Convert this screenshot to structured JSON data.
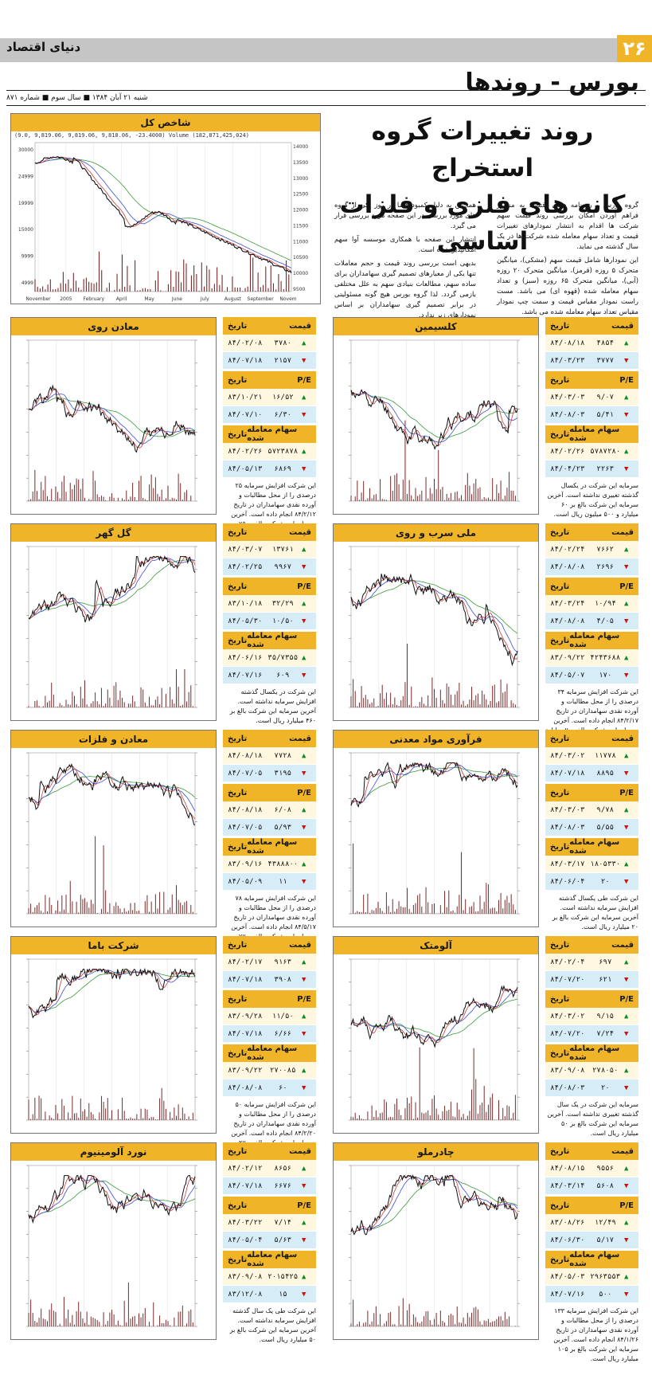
{
  "page": {
    "number": "۲۶",
    "publication": "دنیای اقتصاد",
    "section": "بورس - روندها",
    "dateline": "شنبه ۲۱ آبان ۱۳۸۴ ■ سال سوم ■ شماره ۸۷۱"
  },
  "headline": {
    "line1": "روند تغییرات گروه استخراج",
    "line2": "کانه های فلزی و فلزات اساسی"
  },
  "body": {
    "col_right_p1": "گروه بورس - روزنامه دنیای اقتصاد به منظور فراهم آوردن امکان بررسی روند قیمت سهم شرکت ها اقدام به انتشار نمودارهای تغییرات قیمت و تعداد سهام معامله شده شرکت ها در یک سال گذشته می نماید.",
    "col_right_p2": "این نمودارها شامل قیمت سهم (مشکی)، میانگین متحرک ۵ روزه (قرمز)، میانگین متحرک ۲۰ روزه (آبی)، میانگین متحرک ۶۵ روزه (سبز) و تعداد سهام معامله شده (قهوه ای) می باشد. مست راست نمودار مقیاس قیمت و سمت چپ نمودار مقیاس تعداد سهام معامله شده می باشد.",
    "col_left_p1": "همچنین به دلیل کمبود فضا در روز یکی از گروه های مورد بررسی در این صفحه مورد بررسی قرار می گیرد.",
    "col_left_p2": "انتشار این صفحه با همکاری موسسه آوا سهم امکانپذیر شده است.",
    "col_left_p3": "بدیهی است بررسی روند قیمت و حجم معاملات تنها یکی از معیارهای تصمیم گیری سهامداران برای ساده سهم، مطالعات بنیادی سهم به علل مختلفی بازمی گردد. لذا گروه بورس هیچ گونه مسئولیتی در برابر تصمیم گیری سهامداران بر اساس نمودارهای زیر ندارد."
  },
  "index_panel": {
    "title": "شاخص کل",
    "legend": "(9.0, 9,819.06, 9,819.06, 9,818.06, -23.4000)  Volume (182,871,425,024)",
    "left_ticks": [
      "30000",
      "24999",
      "19999",
      "15000",
      "9999",
      "4999"
    ],
    "right_ticks": [
      "14000",
      "13500",
      "13000",
      "12500",
      "12000",
      "11500",
      "11000",
      "10500",
      "10000",
      "9500"
    ],
    "x_ticks": [
      "November",
      "2005",
      "February",
      "April",
      "May",
      "June",
      "July",
      "August",
      "September",
      "Novem"
    ]
  },
  "labels": {
    "price": "قیمت",
    "date": "تاریخ",
    "pe": "P/E",
    "volume": "سهام معامله شده"
  },
  "companies": [
    {
      "title": "کلسیمین",
      "price": [
        {
          "v": "۴۸۵۴",
          "d": "۸۴/۰۸/۱۸",
          "dir": "up"
        },
        {
          "v": "۳۷۷۷",
          "d": "۸۴/۰۳/۲۳",
          "dir": "dn"
        }
      ],
      "pe": [
        {
          "v": "۹/۰۷",
          "d": "۸۴/۰۳/۰۳",
          "dir": "up"
        },
        {
          "v": "۵/۴۱",
          "d": "۸۴/۰۸/۰۳",
          "dir": "dn"
        }
      ],
      "vol": [
        {
          "v": "۵۷۸۷۲۸۰",
          "d": "۸۴/۰۲/۲۶",
          "dir": "up"
        },
        {
          "v": "۲۲۶۳",
          "d": "۸۴/۰۴/۲۳",
          "dir": "dn"
        }
      ],
      "note": "سرمایه این شرکت در یکسال گذشته تغییری نداشته است. آخرین سرمایه این شرکت بالغ بر ۶۰ میلیارد و ۵۰۰ میلیون ریال است."
    },
    {
      "title": "معادن روی",
      "price": [
        {
          "v": "۳۷۸۰",
          "d": "۸۴/۰۲/۰۸",
          "dir": "up"
        },
        {
          "v": "۲۱۵۷",
          "d": "۸۴/۰۷/۱۸",
          "dir": "dn"
        }
      ],
      "pe": [
        {
          "v": "۱۶/۵۲",
          "d": "۸۳/۱۰/۲۱",
          "dir": "up"
        },
        {
          "v": "۶/۳۰",
          "d": "۸۴/۰۷/۱۰",
          "dir": "dn"
        }
      ],
      "vol": [
        {
          "v": "۵۷۲۳۸۷۸",
          "d": "۸۴/۰۲/۲۶",
          "dir": "up"
        },
        {
          "v": "۶۸۶۹",
          "d": "۸۴/۰۵/۱۳",
          "dir": "dn"
        }
      ],
      "note": "این شرکت افزایش سرمایه ۲۵ درصدی را از محل مطالبات و آورده نقدی سهامداران در تاریخ ۸۴/۲/۱۲ انجام داده است. آخرین سرمایه این شرکت بالغ بر ۷۵ میلیارد و ۴۴ میلیون ریال است."
    },
    {
      "title": "ملی سرب و روی",
      "price": [
        {
          "v": "۷۶۶۲",
          "d": "۸۴/۰۲/۲۴",
          "dir": "up"
        },
        {
          "v": "۲۶۹۶",
          "d": "۸۴/۰۸/۰۸",
          "dir": "dn"
        }
      ],
      "pe": [
        {
          "v": "۱۰/۹۴",
          "d": "۸۴/۰۳/۲۴",
          "dir": "up"
        },
        {
          "v": "۴/۰۵",
          "d": "۸۴/۰۸/۰۸",
          "dir": "dn"
        }
      ],
      "vol": [
        {
          "v": "۴۲۴۳۶۸۸",
          "d": "۸۳/۰۹/۲۲",
          "dir": "up"
        },
        {
          "v": "۱۷۰",
          "d": "۸۴/۰۵/۰۷",
          "dir": "dn"
        }
      ],
      "note": "این شرکت افزایش سرمایه ۳۴ درصدی را از محل مطالبات و آورده نقدی سهامداران در تاریخ ۸۴/۲/۱۷ انجام داده است. آخرین سرمایه این شرکت بالغ بر ۷ میلیارد ریال است."
    },
    {
      "title": "گل گهر",
      "price": [
        {
          "v": "۱۳۷۶۱",
          "d": "۸۴/۰۳/۰۷",
          "dir": "up"
        },
        {
          "v": "۹۹۶۷",
          "d": "۸۴/۰۲/۲۵",
          "dir": "dn"
        }
      ],
      "pe": [
        {
          "v": "۳۲/۲۹",
          "d": "۸۳/۱۰/۱۸",
          "dir": "up"
        },
        {
          "v": "۱۰/۵۰",
          "d": "۸۴/۰۵/۳۰",
          "dir": "dn"
        }
      ],
      "vol": [
        {
          "v": "۳۵/۷۳۵۵",
          "d": "۸۴/۰۶/۱۶",
          "dir": "up"
        },
        {
          "v": "۶۰۹",
          "d": "۸۴/۰۷/۱۶",
          "dir": "dn"
        }
      ],
      "note": "این شرکت در یکسال گذشته افزایش سرمایه نداشته است. آخرین سرمایه این شرکت بالغ بر ۴۶۰ میلیارد ریال است."
    },
    {
      "title": "فرآوری مواد معدنی",
      "price": [
        {
          "v": "۱۱۷۷۸",
          "d": "۸۴/۰۳/۰۲",
          "dir": "up"
        },
        {
          "v": "۸۸۹۵",
          "d": "۸۴/۰۷/۱۸",
          "dir": "dn"
        }
      ],
      "pe": [
        {
          "v": "۹/۷۸",
          "d": "۸۴/۰۳/۰۳",
          "dir": "up"
        },
        {
          "v": "۵/۵۵",
          "d": "۸۴/۰۸/۰۳",
          "dir": "dn"
        }
      ],
      "vol": [
        {
          "v": "۱۸۰۵۳۳۰",
          "d": "۸۴/۰۳/۱۷",
          "dir": "up"
        },
        {
          "v": "۲۰",
          "d": "۸۴/۰۶/۰۴",
          "dir": "dn"
        }
      ],
      "note": "این شرکت طی یکسال گذشته افزایش سرمایه نداشته است. آخرین سرمایه این شرکت بالغ بر ۲۰ میلیارد ریال است."
    },
    {
      "title": "معادن و فلزات",
      "price": [
        {
          "v": "۷۷۲۸",
          "d": "۸۴/۰۸/۱۸",
          "dir": "up"
        },
        {
          "v": "۳۱۹۵",
          "d": "۸۴/۰۷/۰۵",
          "dir": "dn"
        }
      ],
      "pe": [
        {
          "v": "۶/۰۸",
          "d": "۸۴/۰۸/۱۸",
          "dir": "up"
        },
        {
          "v": "۵/۹۳",
          "d": "۸۴/۰۷/۰۵",
          "dir": "dn"
        }
      ],
      "vol": [
        {
          "v": "۴۳۸۸۸۰۰",
          "d": "۸۳/۰۹/۱۶",
          "dir": "up"
        },
        {
          "v": "۱۱",
          "d": "۸۴/۰۵/۰۹",
          "dir": "dn"
        }
      ],
      "note": "این شرکت افزایش سرمایه ۷۸ درصدی را از محل مطالبات و آورده نقدی سهامداران در تاریخ ۸۴/۵/۱۷ انجام داده است. آخرین سرمایه این شرکت بالغ بر ۷۷ میلیارد ریال است."
    },
    {
      "title": "آلومتک",
      "price": [
        {
          "v": "۶۹۷",
          "d": "۸۴/۰۲/۰۴",
          "dir": "up"
        },
        {
          "v": "۶۲۱",
          "d": "۸۴/۰۷/۲۰",
          "dir": "dn"
        }
      ],
      "pe": [
        {
          "v": "۹/۱۵",
          "d": "۸۴/۰۳/۰۲",
          "dir": "up"
        },
        {
          "v": "۷/۲۴",
          "d": "۸۴/۰۷/۲۰",
          "dir": "dn"
        }
      ],
      "vol": [
        {
          "v": "۲۷۸۰۵۰",
          "d": "۸۳/۰۹/۰۸",
          "dir": "up"
        },
        {
          "v": "۲۰",
          "d": "۸۴/۰۸/۰۳",
          "dir": "dn"
        }
      ],
      "note": "سرمایه این شرکت در یک سال گذشته تغییری نداشته است. آخرین سرمایه این شرکت بالغ بر ۵۰ میلیارد ریال است."
    },
    {
      "title": "شرکت باما",
      "price": [
        {
          "v": "۹۱۶۳",
          "d": "۸۴/۰۲/۱۷",
          "dir": "up"
        },
        {
          "v": "۳۹۰۸",
          "d": "۸۴/۰۷/۱۸",
          "dir": "dn"
        }
      ],
      "pe": [
        {
          "v": "۱۱/۵۰",
          "d": "۸۳/۰۹/۲۸",
          "dir": "up"
        },
        {
          "v": "۶/۶۶",
          "d": "۸۴/۰۷/۱۸",
          "dir": "dn"
        }
      ],
      "vol": [
        {
          "v": "۲۷۰۰۸۵",
          "d": "۸۳/۰۹/۲۲",
          "dir": "up"
        },
        {
          "v": "۶۰",
          "d": "۸۴/۰۸/۰۸",
          "dir": "dn"
        }
      ],
      "note": "این شرکت افزایش سرمایه ۵۰ درصدی را از محل مطالبات و آورده نقدی سهامداران در تاریخ ۸۴/۲/۲۰ انجام داده است. آخرین سرمایه این شرکت بالغ بر ۲۷ میلیارد و ۶۴۰ میلیون ریال است."
    },
    {
      "title": "چادرملو",
      "price": [
        {
          "v": "۹۵۵۶",
          "d": "۸۴/۰۸/۱۵",
          "dir": "up"
        },
        {
          "v": "۵۶۰۸",
          "d": "۸۴/۰۳/۱۴",
          "dir": "dn"
        }
      ],
      "pe": [
        {
          "v": "۱۲/۴۹",
          "d": "۸۳/۰۸/۲۶",
          "dir": "up"
        },
        {
          "v": "۵/۱۷",
          "d": "۸۴/۰۶/۳۰",
          "dir": "dn"
        }
      ],
      "vol": [
        {
          "v": "۲۹۶۳۵۵۳",
          "d": "۸۴/۰۵/۰۳",
          "dir": "up"
        },
        {
          "v": "۵۰۰",
          "d": "۸۴/۰۷/۱۶",
          "dir": "dn"
        }
      ],
      "note": "این شرکت افزایش سرمایه ۱۳۳ درصدی را از محل مطالبات و آورده نقدی سهامداران در تاریخ ۸۴/۱/۲۶ انجام داده است. آخرین سرمایه این شرکت بالغ بر ۱۰۵ میلیارد ریال است."
    },
    {
      "title": "نورد آلومینیوم",
      "price": [
        {
          "v": "۸۶۵۶",
          "d": "۸۴/۰۲/۱۲",
          "dir": "up"
        },
        {
          "v": "۶۶۷۶",
          "d": "۸۴/۰۷/۱۸",
          "dir": "dn"
        }
      ],
      "pe": [
        {
          "v": "۷/۱۴",
          "d": "۸۴/۰۳/۲۲",
          "dir": "up"
        },
        {
          "v": "۵/۶۳",
          "d": "۸۴/۰۵/۰۴",
          "dir": "dn"
        }
      ],
      "vol": [
        {
          "v": "۲۰۱۵۴۲۵",
          "d": "۸۳/۰۹/۰۸",
          "dir": "up"
        },
        {
          "v": "۱۵",
          "d": "۸۳/۱۲/۰۸",
          "dir": "dn"
        }
      ],
      "note": "این شرکت طی یک سال گذشته افزایش سرمایه نداشته است. آخرین سرمایه این شرکت بالغ بر ۵۰ میلیارد ریال است."
    }
  ]
}
